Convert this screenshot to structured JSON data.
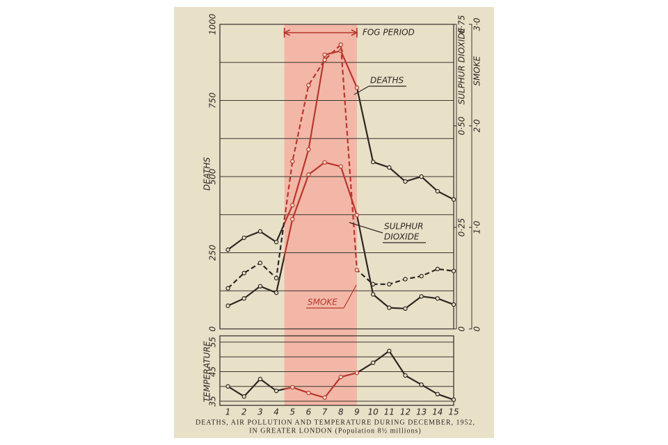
{
  "chart_data": [
    {
      "type": "line",
      "ylabel": "DEATHS",
      "y2label": "SULPHUR DIOXIDE",
      "y3label": "SMOKE",
      "x": [
        1,
        2,
        3,
        4,
        5,
        6,
        7,
        8,
        9,
        10,
        11,
        12,
        13,
        14,
        15
      ],
      "xlim": [
        0.5,
        15
      ],
      "ylim": [
        0,
        1000
      ],
      "yticks": [
        0,
        250,
        500,
        750,
        1000
      ],
      "yminor": [
        125,
        375,
        625,
        875
      ],
      "y2lim": [
        0,
        0.75
      ],
      "y2ticks": [
        0,
        {
          "value": 0.25,
          "label": "0·25"
        },
        {
          "value": 0.5,
          "label": "0·50"
        },
        {
          "value": 0.75,
          "label": "0·75"
        }
      ],
      "y3lim": [
        0,
        3
      ],
      "y3ticks": [
        0,
        {
          "value": 1,
          "label": "1·0"
        },
        {
          "value": 2,
          "label": "2·0"
        },
        {
          "value": 3,
          "label": "3·0"
        }
      ],
      "grid": true,
      "fog_period": {
        "label": "FOG PERIOD",
        "start": 4.5,
        "end": 9,
        "color": "#f4aa9c",
        "line_color": "#b8362c"
      },
      "annotations": [
        "DEATHS",
        "SULPHUR",
        "DIOXIDE",
        "SMOKE"
      ],
      "series": [
        {
          "name": "DEATHS",
          "color": "#2b2622",
          "axis": "y",
          "dash": false,
          "values": [
            260,
            299,
            320,
            285,
            406,
            589,
            900,
            913,
            792,
            548,
            530,
            484,
            500,
            452,
            425
          ]
        },
        {
          "name": "SMOKE",
          "color": "#2b2622",
          "axis": "y3",
          "dash": true,
          "values": [
            0.4,
            0.55,
            0.65,
            0.5,
            1.65,
            2.4,
            2.65,
            2.8,
            0.58,
            0.44,
            0.44,
            0.49,
            0.52,
            0.59,
            0.57
          ]
        },
        {
          "name": "SULPHUR DIOXIDE",
          "color": "#2b2622",
          "axis": "y2",
          "dash": false,
          "values": [
            0.057,
            0.075,
            0.105,
            0.089,
            0.27,
            0.38,
            0.41,
            0.4,
            0.28,
            0.085,
            0.052,
            0.05,
            0.08,
            0.075,
            0.06
          ]
        }
      ]
    },
    {
      "type": "line",
      "ylabel": "TEMPERATURE",
      "x": [
        1,
        2,
        3,
        4,
        5,
        6,
        7,
        8,
        9,
        10,
        11,
        12,
        13,
        14,
        15
      ],
      "xlim": [
        0.5,
        15
      ],
      "ylim": [
        35,
        55
      ],
      "yticks": [
        35,
        45,
        55
      ],
      "yminor": [
        40,
        50
      ],
      "grid": true,
      "series": [
        {
          "name": "TEMPERATURE",
          "color": "#2b2622",
          "axis": "y",
          "dash": false,
          "values": [
            40,
            36.6,
            42.5,
            38.5,
            39.7,
            37.8,
            36.2,
            43.2,
            44.6,
            48,
            52,
            43.7,
            40.6,
            37.4,
            35.5
          ]
        }
      ]
    }
  ],
  "caption": [
    "DEATHS, AIR POLLUTION AND TEMPERATURE DURING DECEMBER, 1952,",
    "IN GREATER LONDON (Population 8½ millions)"
  ]
}
